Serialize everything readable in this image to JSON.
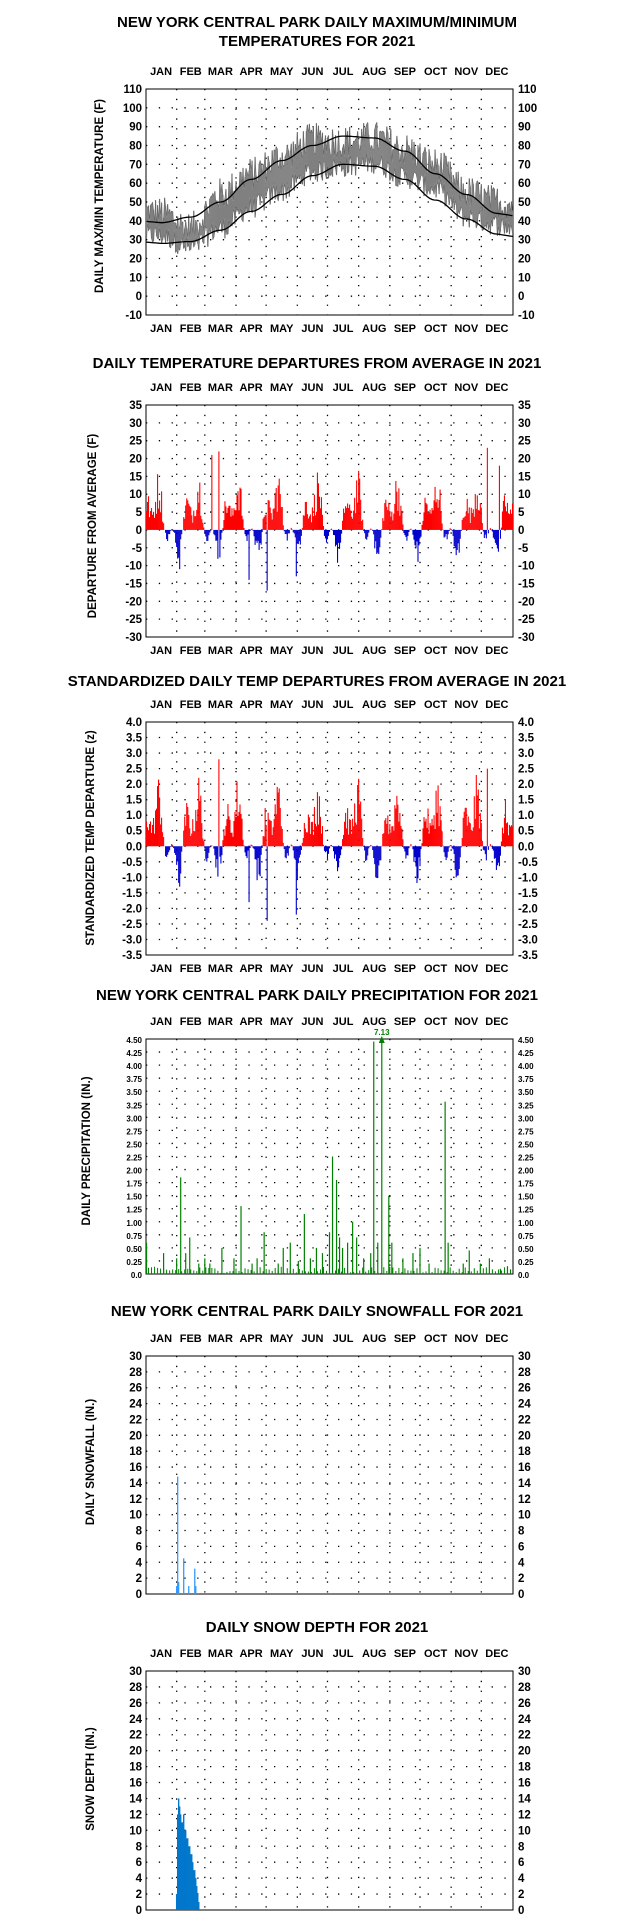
{
  "months": [
    "JAN",
    "FEB",
    "MAR",
    "APR",
    "MAY",
    "JUN",
    "JUL",
    "AUG",
    "SEP",
    "OCT",
    "NOV",
    "DEC"
  ],
  "colors": {
    "max_min": "#808080",
    "normals": "#000000",
    "above": "#ff0000",
    "below": "#0000cc",
    "precip": "#008000",
    "snow": "#3399ff",
    "depth": "#0077cc",
    "grid": "#000000"
  },
  "chart_data": [
    {
      "id": "temps",
      "type": "line",
      "title": "NEW YORK CENTRAL PARK DAILY MAXIMUM/MINIMUM TEMPERATURES FOR 2021",
      "title_lines": [
        "NEW YORK CENTRAL PARK DAILY MAXIMUM/MINIMUM",
        "TEMPERATURES FOR 2021"
      ],
      "ylabel": "DAILY MAX/MIN TEMPERATURE (F)",
      "ylim": [
        -10,
        110
      ],
      "yticks": [
        "110",
        "100",
        "90",
        "80",
        "70",
        "60",
        "50",
        "40",
        "30",
        "20",
        "10",
        "0",
        "-10"
      ],
      "normal_max_monthly": [
        39,
        42,
        50,
        62,
        72,
        80,
        85,
        84,
        77,
        65,
        54,
        44
      ],
      "normal_min_monthly": [
        28,
        29,
        35,
        45,
        54,
        64,
        70,
        69,
        62,
        51,
        41,
        33
      ],
      "max_monthly": [
        44,
        36,
        54,
        65,
        74,
        83,
        82,
        84,
        78,
        70,
        55,
        50
      ],
      "min_monthly": [
        32,
        26,
        36,
        47,
        56,
        66,
        69,
        71,
        63,
        57,
        42,
        38
      ]
    },
    {
      "id": "departures",
      "type": "bar",
      "title": "DAILY TEMPERATURE DEPARTURES FROM AVERAGE IN 2021",
      "ylabel": "DEPARTURE FROM AVERAGE (F)",
      "ylim": [
        -30,
        35
      ],
      "yticks": [
        "35",
        "30",
        "25",
        "20",
        "15",
        "10",
        "5",
        "0",
        "-5",
        "-10",
        "-15",
        "-20",
        "-25",
        "-30"
      ],
      "notable_days": [
        {
          "day": 34,
          "value": -11
        },
        {
          "day": 66,
          "value": 21
        },
        {
          "day": 73,
          "value": 22
        },
        {
          "day": 103,
          "value": -14
        },
        {
          "day": 121,
          "value": -17
        },
        {
          "day": 150,
          "value": -13
        },
        {
          "day": 340,
          "value": 23
        },
        {
          "day": 352,
          "value": 18
        }
      ]
    },
    {
      "id": "standardized",
      "type": "bar",
      "title": "STANDARDIZED DAILY TEMP DEPARTURES FROM AVERAGE IN 2021",
      "ylabel": "STANDARDIZED TEMP DEPARTURE (z)",
      "ylim": [
        -3.5,
        4.0
      ],
      "yticks": [
        "4.0",
        "3.5",
        "3.0",
        "2.5",
        "2.0",
        "1.5",
        "1.0",
        "0.5",
        "0.0",
        "-0.5",
        "-1.0",
        "-1.5",
        "-2.0",
        "-2.5",
        "-3.0",
        "-3.5"
      ],
      "notable_days": [
        {
          "day": 34,
          "value": -1.3
        },
        {
          "day": 73,
          "value": 2.8
        },
        {
          "day": 103,
          "value": -1.8
        },
        {
          "day": 121,
          "value": -2.4
        },
        {
          "day": 150,
          "value": -2.2
        },
        {
          "day": 340,
          "value": 2.5
        }
      ]
    },
    {
      "id": "precip",
      "type": "bar",
      "title": "NEW YORK CENTRAL PARK DAILY PRECIPITATION FOR 2021",
      "ylabel": "DAILY PRECIPITATION (IN.)",
      "ylim": [
        0,
        4.5
      ],
      "yticks": [
        "4.50",
        "4.25",
        "4.00",
        "3.75",
        "3.50",
        "3.25",
        "3.00",
        "2.75",
        "2.50",
        "2.25",
        "2.00",
        "1.75",
        "1.50",
        "1.25",
        "1.00",
        "0.75",
        "0.50",
        "0.25",
        "0.0"
      ],
      "off_scale_label": "7.13",
      "days": [
        {
          "day": 1,
          "value": 0.6
        },
        {
          "day": 18,
          "value": 0.4
        },
        {
          "day": 31,
          "value": 0.3
        },
        {
          "day": 35,
          "value": 1.85
        },
        {
          "day": 40,
          "value": 0.4
        },
        {
          "day": 44,
          "value": 0.7
        },
        {
          "day": 53,
          "value": 0.2
        },
        {
          "day": 59,
          "value": 0.3
        },
        {
          "day": 64,
          "value": 0.2
        },
        {
          "day": 76,
          "value": 0.5
        },
        {
          "day": 88,
          "value": 0.3
        },
        {
          "day": 95,
          "value": 1.3
        },
        {
          "day": 106,
          "value": 0.2
        },
        {
          "day": 111,
          "value": 0.3
        },
        {
          "day": 118,
          "value": 0.8
        },
        {
          "day": 132,
          "value": 0.2
        },
        {
          "day": 137,
          "value": 0.5
        },
        {
          "day": 144,
          "value": 0.6
        },
        {
          "day": 152,
          "value": 0.25
        },
        {
          "day": 158,
          "value": 1.15
        },
        {
          "day": 164,
          "value": 0.3
        },
        {
          "day": 170,
          "value": 0.5
        },
        {
          "day": 176,
          "value": 0.4
        },
        {
          "day": 183,
          "value": 0.8
        },
        {
          "day": 186,
          "value": 2.25
        },
        {
          "day": 190,
          "value": 1.8
        },
        {
          "day": 193,
          "value": 0.7
        },
        {
          "day": 196,
          "value": 0.5
        },
        {
          "day": 201,
          "value": 0.6
        },
        {
          "day": 206,
          "value": 1.0
        },
        {
          "day": 210,
          "value": 0.7
        },
        {
          "day": 217,
          "value": 0.3
        },
        {
          "day": 224,
          "value": 0.4
        },
        {
          "day": 227,
          "value": 4.45
        },
        {
          "day": 231,
          "value": 0.6
        },
        {
          "day": 235,
          "value": 7.13
        },
        {
          "day": 242,
          "value": 1.5
        },
        {
          "day": 245,
          "value": 0.6
        },
        {
          "day": 256,
          "value": 0.3
        },
        {
          "day": 266,
          "value": 0.4
        },
        {
          "day": 273,
          "value": 0.5
        },
        {
          "day": 282,
          "value": 0.2
        },
        {
          "day": 298,
          "value": 3.3
        },
        {
          "day": 301,
          "value": 0.6
        },
        {
          "day": 316,
          "value": 0.2
        },
        {
          "day": 322,
          "value": 0.45
        },
        {
          "day": 333,
          "value": 0.2
        },
        {
          "day": 342,
          "value": 0.3
        },
        {
          "day": 353,
          "value": 0.1
        },
        {
          "day": 360,
          "value": 0.15
        }
      ]
    },
    {
      "id": "snowfall",
      "type": "bar",
      "title": "NEW YORK CENTRAL PARK DAILY SNOWFALL FOR 2021",
      "ylabel": "DAILY SNOWFALL (IN.)",
      "ylim": [
        0,
        30
      ],
      "yticks": [
        "30",
        "28",
        "26",
        "24",
        "22",
        "20",
        "18",
        "16",
        "14",
        "12",
        "10",
        "8",
        "6",
        "4",
        "2",
        "0"
      ],
      "days": [
        {
          "day": 31,
          "value": 1.0
        },
        {
          "day": 32,
          "value": 14.8
        },
        {
          "day": 33,
          "value": 1.5
        },
        {
          "day": 38,
          "value": 4.5
        },
        {
          "day": 43,
          "value": 1.0
        },
        {
          "day": 49,
          "value": 3.2
        },
        {
          "day": 50,
          "value": 1.0
        }
      ]
    },
    {
      "id": "depth",
      "type": "bar",
      "title": "DAILY SNOW DEPTH FOR 2021",
      "ylabel": "SNOW DEPTH (IN.)",
      "ylim": [
        0,
        30
      ],
      "yticks": [
        "30",
        "28",
        "26",
        "24",
        "22",
        "20",
        "18",
        "16",
        "14",
        "12",
        "10",
        "8",
        "6",
        "4",
        "2",
        "0"
      ],
      "days": [
        {
          "day": 31,
          "value": 2
        },
        {
          "day": 32,
          "value": 12
        },
        {
          "day": 33,
          "value": 14
        },
        {
          "day": 34,
          "value": 13
        },
        {
          "day": 35,
          "value": 12
        },
        {
          "day": 36,
          "value": 11
        },
        {
          "day": 37,
          "value": 11
        },
        {
          "day": 38,
          "value": 12
        },
        {
          "day": 39,
          "value": 10
        },
        {
          "day": 40,
          "value": 10
        },
        {
          "day": 41,
          "value": 9
        },
        {
          "day": 42,
          "value": 9
        },
        {
          "day": 43,
          "value": 8
        },
        {
          "day": 44,
          "value": 8
        },
        {
          "day": 45,
          "value": 7
        },
        {
          "day": 46,
          "value": 7
        },
        {
          "day": 47,
          "value": 6
        },
        {
          "day": 48,
          "value": 5
        },
        {
          "day": 49,
          "value": 5
        },
        {
          "day": 50,
          "value": 4
        },
        {
          "day": 51,
          "value": 3
        },
        {
          "day": 52,
          "value": 2
        },
        {
          "day": 53,
          "value": 1
        }
      ]
    }
  ]
}
